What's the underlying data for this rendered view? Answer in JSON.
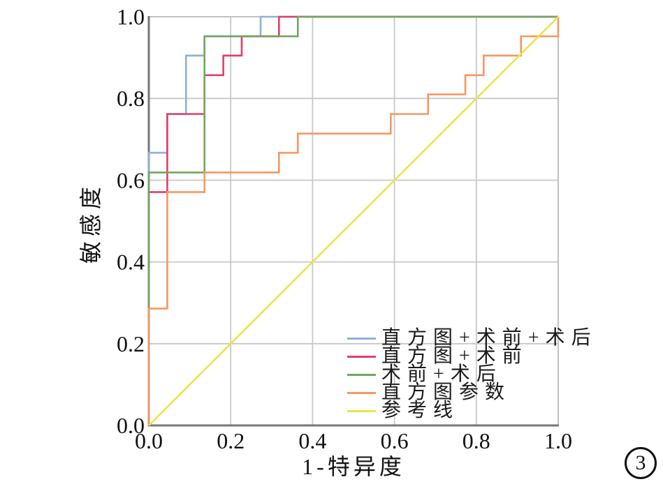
{
  "figure": {
    "number_label": "3"
  },
  "style": {
    "grid_color": "#C8C8C8",
    "spine_dark_color": "#777777",
    "spine_light_color": "#C2C2C2",
    "text_color": "#111111",
    "background_color": "#FFFFFF"
  },
  "chart_data": {
    "type": "line",
    "subtype": "roc-step-curves",
    "title": "",
    "xlabel": "1-特异度",
    "ylabel": "敏感度",
    "xlim": [
      0,
      1
    ],
    "ylim": [
      0,
      1
    ],
    "xticks": [
      "0.0",
      "0.2",
      "0.4",
      "0.6",
      "0.8",
      "1.0"
    ],
    "yticks": [
      "0.0",
      "0.2",
      "0.4",
      "0.6",
      "0.8",
      "1.0"
    ],
    "grid": true,
    "legend_position": "inside-lower-right",
    "series": [
      {
        "name": "直方图+术前+术后",
        "color": "#8FAFDC",
        "points": [
          [
            0,
            0
          ],
          [
            0,
            0.667
          ],
          [
            0.045,
            0.667
          ],
          [
            0.045,
            0.762
          ],
          [
            0.091,
            0.762
          ],
          [
            0.091,
            0.905
          ],
          [
            0.136,
            0.905
          ],
          [
            0.136,
            0.952
          ],
          [
            0.273,
            0.952
          ],
          [
            0.273,
            1
          ],
          [
            1,
            1
          ]
        ]
      },
      {
        "name": "直方图+术前",
        "color": "#E13E68",
        "points": [
          [
            0,
            0
          ],
          [
            0,
            0.571
          ],
          [
            0.045,
            0.571
          ],
          [
            0.045,
            0.762
          ],
          [
            0.136,
            0.762
          ],
          [
            0.136,
            0.857
          ],
          [
            0.182,
            0.857
          ],
          [
            0.182,
            0.905
          ],
          [
            0.227,
            0.905
          ],
          [
            0.227,
            0.952
          ],
          [
            0.318,
            0.952
          ],
          [
            0.318,
            1
          ],
          [
            1,
            1
          ]
        ]
      },
      {
        "name": "术前+术后",
        "color": "#6FA75F",
        "points": [
          [
            0,
            0
          ],
          [
            0,
            0.619
          ],
          [
            0.136,
            0.619
          ],
          [
            0.136,
            0.952
          ],
          [
            0.364,
            0.952
          ],
          [
            0.364,
            1
          ],
          [
            1,
            1
          ]
        ]
      },
      {
        "name": "直方图参数",
        "color": "#F69763",
        "points": [
          [
            0,
            0
          ],
          [
            0,
            0.286
          ],
          [
            0.045,
            0.286
          ],
          [
            0.045,
            0.571
          ],
          [
            0.136,
            0.571
          ],
          [
            0.136,
            0.619
          ],
          [
            0.318,
            0.619
          ],
          [
            0.318,
            0.667
          ],
          [
            0.364,
            0.667
          ],
          [
            0.364,
            0.714
          ],
          [
            0.591,
            0.714
          ],
          [
            0.591,
            0.762
          ],
          [
            0.682,
            0.762
          ],
          [
            0.682,
            0.81
          ],
          [
            0.773,
            0.81
          ],
          [
            0.773,
            0.857
          ],
          [
            0.818,
            0.857
          ],
          [
            0.818,
            0.905
          ],
          [
            0.909,
            0.905
          ],
          [
            0.909,
            0.952
          ],
          [
            1,
            0.952
          ],
          [
            1,
            1
          ]
        ]
      },
      {
        "name": "参考线",
        "color": "#EFE24B",
        "role": "reference",
        "points": [
          [
            0,
            0
          ],
          [
            1,
            1
          ]
        ]
      }
    ]
  }
}
